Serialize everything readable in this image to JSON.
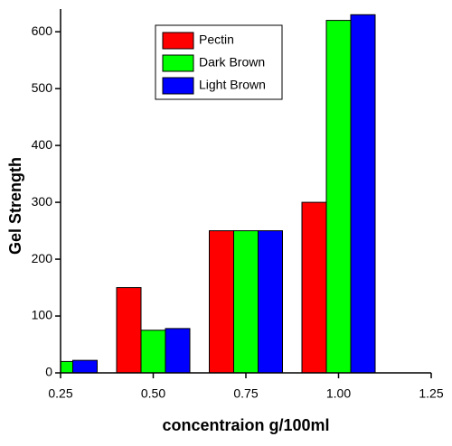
{
  "chart_data": {
    "type": "bar",
    "x_label": "concentraion g/100ml",
    "y_label": "Gel Strength",
    "x": [
      0.25,
      0.5,
      0.75,
      1.0
    ],
    "series": [
      {
        "name": "Pectin",
        "color": "#ff0000",
        "values": [
          null,
          150,
          250,
          300
        ]
      },
      {
        "name": "Dark Brown",
        "color": "#00ff00",
        "values": [
          20,
          75,
          250,
          620
        ]
      },
      {
        "name": "Light Brown",
        "color": "#0000ff",
        "values": [
          22,
          78,
          250,
          630
        ]
      }
    ],
    "xlim": [
      0.25,
      1.25
    ],
    "xticks": [
      0.25,
      {
        "value": 0.5,
        "label": "0.50"
      },
      {
        "value": 0.75,
        "label": "0.75"
      },
      {
        "value": 1.0,
        "label": "1.00"
      },
      1.25
    ],
    "ylim": [
      0,
      640
    ],
    "yticks": [
      0,
      100,
      200,
      300,
      400,
      500,
      600
    ],
    "grid": false,
    "legend": "top-center"
  }
}
